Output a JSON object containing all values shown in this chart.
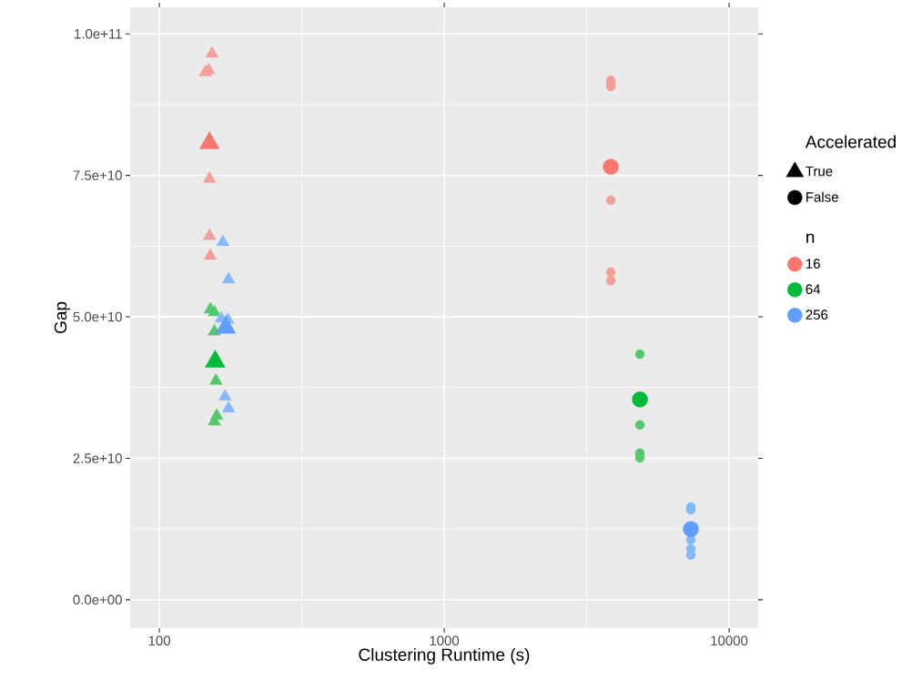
{
  "chart_data": {
    "type": "bubble",
    "xlabel": "Clustering Runtime (s)",
    "ylabel": "Gap",
    "log": "x",
    "grid": true,
    "xlim": [
      79,
      12650
    ],
    "ylim": [
      -5000000000.0,
      104700000000.0
    ],
    "xticks": [
      100,
      1000,
      10000
    ],
    "yticks": [
      {
        "value": 0,
        "label": "0.0e+00"
      },
      {
        "value": 25000000000.0,
        "label": "2.5e+10"
      },
      {
        "value": 50000000000.0,
        "label": "5.0e+10"
      },
      {
        "value": 75000000000.0,
        "label": "7.5e+10"
      },
      {
        "value": 100000000000.0,
        "label": "1.0e+11"
      }
    ],
    "legend": "right",
    "legend_title": "Accelerated",
    "annotations": [
      "n"
    ],
    "series": [
      {
        "name": "True",
        "marker": "triangle",
        "color": "#000000"
      },
      {
        "name": "False",
        "marker": "circle",
        "color": "#000000"
      },
      {
        "name": "16",
        "marker": "circle",
        "color": "#f8766d"
      },
      {
        "name": "64",
        "marker": "circle",
        "color": "#00ba38"
      },
      {
        "name": "256",
        "marker": "circle",
        "color": "#619cff"
      },
      {
        "marker": "triangle",
        "x": [
          153,
          149,
          145,
          150,
          150,
          151,
          150
        ],
        "values": [
          96500000000.0,
          93600000000.0,
          93200000000.0,
          74400000000.0,
          64300000000.0,
          60800000000.0,
          80700000000.0
        ],
        "sizes": [
          0.4,
          0.4,
          0.4,
          0.4,
          0.4,
          0.4,
          1
        ],
        "colors": [
          "#f4a09a",
          "#f4a09a",
          "#f4a09a",
          "#f4a09a",
          "#f4a09a",
          "#f4a09a",
          "#f8766d"
        ]
      },
      {
        "marker": "triangle",
        "x": [
          151,
          156,
          156,
          158,
          159,
          156,
          157
        ],
        "values": [
          51300000000.0,
          50800000000.0,
          47400000000.0,
          38700000000.0,
          32500000000.0,
          31500000000.0,
          42100000000.0
        ],
        "sizes": [
          0.4,
          0.4,
          0.4,
          0.4,
          0.4,
          0.4,
          1
        ],
        "colors": [
          "#55c86e",
          "#55c86e",
          "#55c86e",
          "#55c86e",
          "#55c86e",
          "#55c86e",
          "#00ba38"
        ]
      },
      {
        "marker": "triangle",
        "x": [
          167,
          175,
          165,
          174,
          170,
          175,
          171
        ],
        "values": [
          63200000000.0,
          56600000000.0,
          49700000000.0,
          49500000000.0,
          35900000000.0,
          33800000000.0,
          48100000000.0
        ],
        "sizes": [
          0.4,
          0.4,
          0.4,
          0.4,
          0.4,
          0.4,
          1
        ],
        "colors": [
          "#85b8f8",
          "#85b8f8",
          "#85b8f8",
          "#85b8f8",
          "#85b8f8",
          "#85b8f8",
          "#619cff"
        ]
      },
      {
        "marker": "circle",
        "x": [
          3846,
          3846,
          3846,
          3846,
          3846,
          3846,
          3846
        ],
        "values": [
          91800000000.0,
          91300000000.0,
          90700000000.0,
          70600000000.0,
          57900000000.0,
          56400000000.0,
          76500000000.0
        ],
        "sizes": [
          0.35,
          0.35,
          0.35,
          0.35,
          0.35,
          0.35,
          1
        ],
        "colors": [
          "#f4a09a",
          "#f4a09a",
          "#f4a09a",
          "#f4a09a",
          "#f4a09a",
          "#f4a09a",
          "#f8766d"
        ]
      },
      {
        "marker": "circle",
        "x": [
          4864,
          4864,
          4864,
          4864,
          4864
        ],
        "values": [
          43400000000.0,
          30900000000.0,
          25900000000.0,
          25100000000.0,
          35400000000.0
        ],
        "sizes": [
          0.35,
          0.35,
          0.35,
          0.35,
          1
        ],
        "colors": [
          "#55c86e",
          "#55c86e",
          "#55c86e",
          "#55c86e",
          "#00ba38"
        ]
      },
      {
        "marker": "circle",
        "x": [
          7345,
          7345,
          7345,
          7345,
          7345,
          7345
        ],
        "values": [
          16400000000.0,
          15900000000.0,
          10600000000.0,
          9000000000.0,
          7900000000.0,
          12500000000.0
        ],
        "sizes": [
          0.35,
          0.35,
          0.35,
          0.35,
          0.35,
          1
        ],
        "colors": [
          "#85b8f8",
          "#85b8f8",
          "#85b8f8",
          "#85b8f8",
          "#85b8f8",
          "#619cff"
        ]
      }
    ]
  }
}
